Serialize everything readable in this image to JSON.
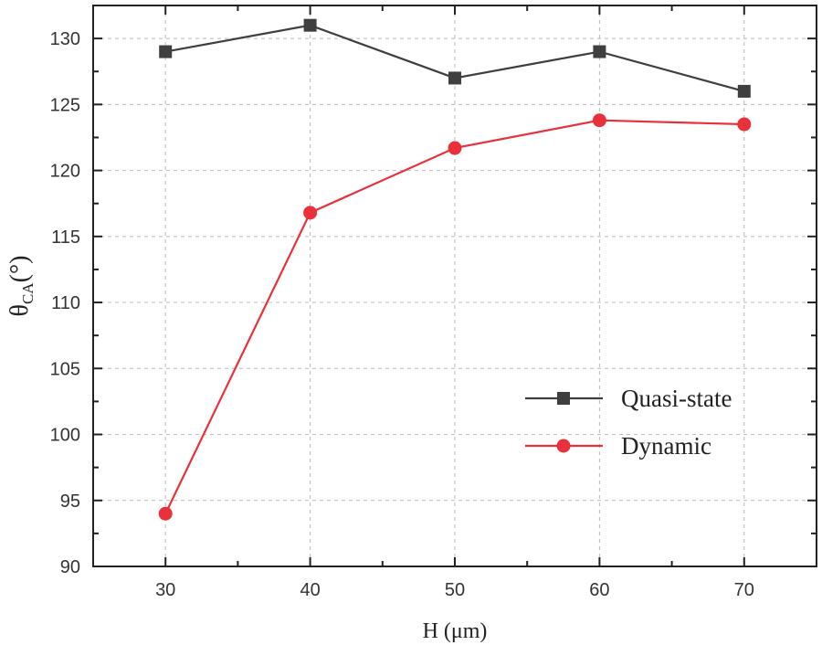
{
  "chart_data": {
    "type": "line",
    "title": "",
    "xlabel": "H (μm)",
    "ylabel_main": "θ",
    "ylabel_sub": "CA",
    "ylabel_unit": "(°)",
    "x": [
      30,
      40,
      50,
      60,
      70
    ],
    "xlim": [
      25,
      75
    ],
    "ylim": [
      90,
      132.5
    ],
    "xticks": [
      30,
      40,
      50,
      60,
      70
    ],
    "yticks": [
      90,
      95,
      100,
      105,
      110,
      115,
      120,
      125,
      130
    ],
    "grid": true,
    "legend_position": "center-right",
    "series": [
      {
        "name": "Quasi-state",
        "values": [
          129,
          131,
          127,
          129,
          126
        ],
        "color": "#3f3f3f",
        "marker": "square"
      },
      {
        "name": "Dynamic",
        "values": [
          94,
          116.8,
          121.7,
          123.8,
          123.5
        ],
        "color": "#e8313a",
        "marker": "circle"
      }
    ]
  }
}
